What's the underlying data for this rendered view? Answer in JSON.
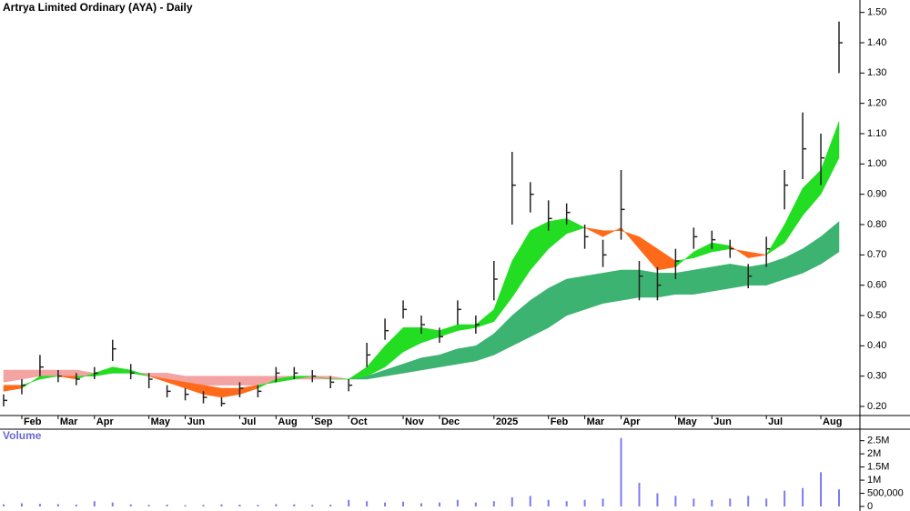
{
  "chart_data": [
    {
      "type": "ohlc",
      "title": "Artrya Limited Ordinary (AYA) - Daily",
      "categories": [
        null,
        "Feb",
        null,
        "Mar",
        null,
        "Apr",
        null,
        null,
        "May",
        null,
        "Jun",
        null,
        null,
        "Jul",
        null,
        "Aug",
        null,
        "Sep",
        null,
        "Oct",
        null,
        null,
        "Nov",
        null,
        "Dec",
        null,
        null,
        "2025",
        null,
        null,
        "Feb",
        null,
        "Mar",
        null,
        "Apr",
        null,
        null,
        "May",
        null,
        "Jun",
        null,
        null,
        "Jul",
        null,
        null,
        "Aug",
        null
      ],
      "close": [
        0.22,
        0.27,
        0.33,
        0.3,
        0.29,
        0.31,
        0.39,
        0.31,
        0.29,
        0.25,
        0.24,
        0.23,
        0.21,
        0.26,
        0.25,
        0.31,
        0.31,
        0.3,
        0.28,
        0.27,
        0.37,
        0.45,
        0.52,
        0.47,
        0.43,
        0.52,
        0.47,
        0.62,
        0.93,
        0.9,
        0.82,
        0.84,
        0.76,
        0.7,
        0.85,
        0.63,
        0.6,
        0.68,
        0.76,
        0.75,
        0.72,
        0.63,
        0.72,
        0.93,
        1.05,
        1.02,
        1.4
      ],
      "high": [
        0.24,
        0.29,
        0.37,
        0.32,
        0.31,
        0.33,
        0.42,
        0.34,
        0.31,
        0.27,
        0.26,
        0.25,
        0.23,
        0.28,
        0.27,
        0.33,
        0.33,
        0.32,
        0.3,
        0.29,
        0.41,
        0.49,
        0.55,
        0.5,
        0.46,
        0.55,
        0.5,
        0.68,
        1.04,
        0.94,
        0.88,
        0.87,
        0.8,
        0.75,
        0.98,
        0.68,
        0.66,
        0.72,
        0.79,
        0.78,
        0.75,
        0.67,
        0.76,
        0.98,
        1.17,
        1.1,
        1.47
      ],
      "low": [
        0.2,
        0.24,
        0.3,
        0.28,
        0.27,
        0.29,
        0.35,
        0.29,
        0.26,
        0.23,
        0.22,
        0.21,
        0.2,
        0.23,
        0.23,
        0.28,
        0.29,
        0.28,
        0.26,
        0.25,
        0.33,
        0.42,
        0.49,
        0.44,
        0.41,
        0.47,
        0.44,
        0.55,
        0.8,
        0.84,
        0.78,
        0.8,
        0.72,
        0.66,
        0.75,
        0.55,
        0.55,
        0.62,
        0.72,
        0.72,
        0.69,
        0.59,
        0.66,
        0.85,
        0.95,
        0.93,
        1.3
      ],
      "color": "#222222",
      "ribbons": [
        {
          "fast": [
            0.28,
            0.29,
            0.3,
            0.3,
            0.3,
            0.3,
            0.31,
            0.31,
            0.3,
            0.29,
            0.28,
            0.27,
            0.27,
            0.27,
            0.27,
            0.28,
            0.29,
            0.29,
            0.29,
            0.29,
            0.3,
            0.32,
            0.34,
            0.36,
            0.37,
            0.39,
            0.4,
            0.44,
            0.5,
            0.55,
            0.59,
            0.62,
            0.63,
            0.64,
            0.65,
            0.65,
            0.64,
            0.64,
            0.65,
            0.66,
            0.67,
            0.66,
            0.67,
            0.69,
            0.72,
            0.76,
            0.81
          ],
          "slow": [
            0.32,
            0.32,
            0.32,
            0.32,
            0.32,
            0.31,
            0.31,
            0.31,
            0.31,
            0.31,
            0.3,
            0.3,
            0.3,
            0.3,
            0.3,
            0.3,
            0.3,
            0.3,
            0.3,
            0.29,
            0.29,
            0.3,
            0.31,
            0.32,
            0.33,
            0.34,
            0.35,
            0.37,
            0.4,
            0.43,
            0.46,
            0.5,
            0.52,
            0.54,
            0.55,
            0.56,
            0.56,
            0.57,
            0.57,
            0.58,
            0.59,
            0.6,
            0.6,
            0.62,
            0.64,
            0.67,
            0.71
          ],
          "up_color": "#3cb371",
          "down_color": "#f4a3a3"
        },
        {
          "fast": [
            0.25,
            0.26,
            0.3,
            0.3,
            0.29,
            0.31,
            0.33,
            0.32,
            0.3,
            0.28,
            0.26,
            0.24,
            0.23,
            0.24,
            0.26,
            0.29,
            0.3,
            0.3,
            0.29,
            0.29,
            0.33,
            0.4,
            0.46,
            0.46,
            0.45,
            0.47,
            0.47,
            0.52,
            0.68,
            0.78,
            0.81,
            0.82,
            0.79,
            0.76,
            0.79,
            0.72,
            0.65,
            0.66,
            0.71,
            0.74,
            0.73,
            0.69,
            0.7,
            0.8,
            0.92,
            0.98,
            1.14
          ],
          "slow": [
            0.27,
            0.27,
            0.29,
            0.3,
            0.3,
            0.3,
            0.31,
            0.31,
            0.3,
            0.29,
            0.28,
            0.27,
            0.26,
            0.26,
            0.27,
            0.28,
            0.29,
            0.3,
            0.29,
            0.29,
            0.3,
            0.33,
            0.38,
            0.41,
            0.43,
            0.45,
            0.46,
            0.48,
            0.56,
            0.65,
            0.72,
            0.77,
            0.79,
            0.78,
            0.78,
            0.76,
            0.72,
            0.68,
            0.69,
            0.71,
            0.72,
            0.71,
            0.7,
            0.74,
            0.83,
            0.9,
            1.02
          ],
          "up_color": "#22dd22",
          "down_color": "#ff6a1a"
        }
      ],
      "ylim": [
        0.17,
        1.52
      ],
      "yticks": [
        {
          "value": 0.2,
          "label": "0.20"
        },
        {
          "value": 0.3,
          "label": "0.30"
        },
        {
          "value": 0.4,
          "label": "0.40"
        },
        {
          "value": 0.5,
          "label": "0.50"
        },
        {
          "value": 0.6,
          "label": "0.60"
        },
        {
          "value": 0.7,
          "label": "0.70"
        },
        {
          "value": 0.8,
          "label": "0.80"
        },
        {
          "value": 0.9,
          "label": "0.90"
        },
        {
          "value": 1.0,
          "label": "1.00"
        },
        {
          "value": 1.1,
          "label": "1.10"
        },
        {
          "value": 1.2,
          "label": "1.20"
        },
        {
          "value": 1.3,
          "label": "1.30"
        },
        {
          "value": 1.4,
          "label": "1.40"
        },
        {
          "value": 1.5,
          "label": "1.50"
        }
      ]
    },
    {
      "type": "bar",
      "title": "Volume",
      "values": [
        80000,
        120000,
        100000,
        90000,
        70000,
        200000,
        150000,
        80000,
        60000,
        70000,
        50000,
        60000,
        80000,
        70000,
        60000,
        90000,
        80000,
        60000,
        70000,
        250000,
        200000,
        150000,
        180000,
        120000,
        150000,
        250000,
        150000,
        200000,
        350000,
        400000,
        250000,
        200000,
        250000,
        300000,
        2600000,
        900000,
        500000,
        400000,
        300000,
        250000,
        300000,
        400000,
        300000,
        600000,
        700000,
        1300000,
        650000
      ],
      "color": "#7b7bf0",
      "ylim": [
        0,
        2800000
      ],
      "yticks": [
        0,
        {
          "value": 500000,
          "label": "500,000"
        },
        {
          "value": 1000000,
          "label": "1M"
        },
        {
          "value": 1500000,
          "label": "1.5M"
        },
        {
          "value": 2000000,
          "label": "2M"
        },
        {
          "value": 2500000,
          "label": "2.5M"
        }
      ]
    }
  ]
}
